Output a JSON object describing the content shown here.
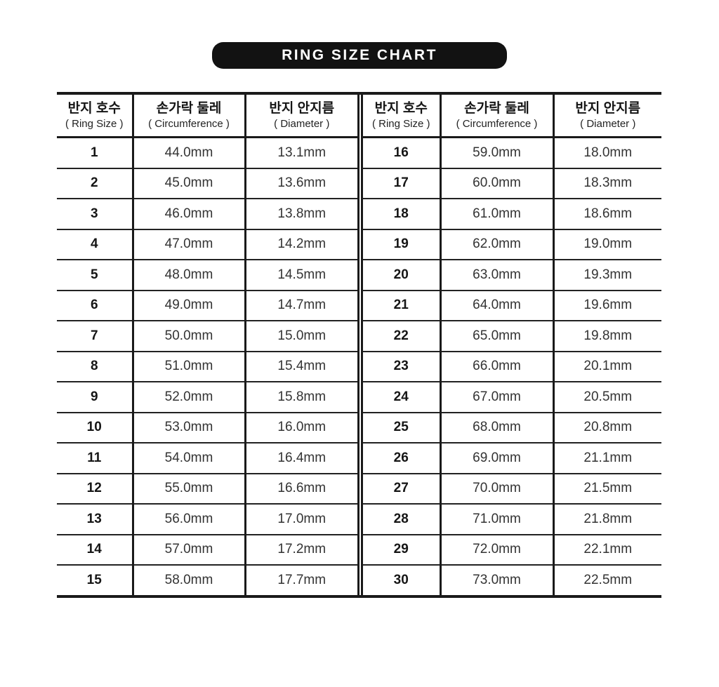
{
  "chart_data": {
    "type": "table",
    "title": "RING SIZE CHART",
    "column_headers": [
      {
        "ko": "반지 호수",
        "en": "( Ring Size )"
      },
      {
        "ko": "손가락 둘레",
        "en": "( Circumference )"
      },
      {
        "ko": "반지 안지름",
        "en": "( Diameter )"
      }
    ],
    "left_rows": [
      {
        "size": "1",
        "circumference": "44.0mm",
        "diameter": "13.1mm"
      },
      {
        "size": "2",
        "circumference": "45.0mm",
        "diameter": "13.6mm"
      },
      {
        "size": "3",
        "circumference": "46.0mm",
        "diameter": "13.8mm"
      },
      {
        "size": "4",
        "circumference": "47.0mm",
        "diameter": "14.2mm"
      },
      {
        "size": "5",
        "circumference": "48.0mm",
        "diameter": "14.5mm"
      },
      {
        "size": "6",
        "circumference": "49.0mm",
        "diameter": "14.7mm"
      },
      {
        "size": "7",
        "circumference": "50.0mm",
        "diameter": "15.0mm"
      },
      {
        "size": "8",
        "circumference": "51.0mm",
        "diameter": "15.4mm"
      },
      {
        "size": "9",
        "circumference": "52.0mm",
        "diameter": "15.8mm"
      },
      {
        "size": "10",
        "circumference": "53.0mm",
        "diameter": "16.0mm"
      },
      {
        "size": "11",
        "circumference": "54.0mm",
        "diameter": "16.4mm"
      },
      {
        "size": "12",
        "circumference": "55.0mm",
        "diameter": "16.6mm"
      },
      {
        "size": "13",
        "circumference": "56.0mm",
        "diameter": "17.0mm"
      },
      {
        "size": "14",
        "circumference": "57.0mm",
        "diameter": "17.2mm"
      },
      {
        "size": "15",
        "circumference": "58.0mm",
        "diameter": "17.7mm"
      }
    ],
    "right_rows": [
      {
        "size": "16",
        "circumference": "59.0mm",
        "diameter": "18.0mm"
      },
      {
        "size": "17",
        "circumference": "60.0mm",
        "diameter": "18.3mm"
      },
      {
        "size": "18",
        "circumference": "61.0mm",
        "diameter": "18.6mm"
      },
      {
        "size": "19",
        "circumference": "62.0mm",
        "diameter": "19.0mm"
      },
      {
        "size": "20",
        "circumference": "63.0mm",
        "diameter": "19.3mm"
      },
      {
        "size": "21",
        "circumference": "64.0mm",
        "diameter": "19.6mm"
      },
      {
        "size": "22",
        "circumference": "65.0mm",
        "diameter": "19.8mm"
      },
      {
        "size": "23",
        "circumference": "66.0mm",
        "diameter": "20.1mm"
      },
      {
        "size": "24",
        "circumference": "67.0mm",
        "diameter": "20.5mm"
      },
      {
        "size": "25",
        "circumference": "68.0mm",
        "diameter": "20.8mm"
      },
      {
        "size": "26",
        "circumference": "69.0mm",
        "diameter": "21.1mm"
      },
      {
        "size": "27",
        "circumference": "70.0mm",
        "diameter": "21.5mm"
      },
      {
        "size": "28",
        "circumference": "71.0mm",
        "diameter": "21.8mm"
      },
      {
        "size": "29",
        "circumference": "72.0mm",
        "diameter": "22.1mm"
      },
      {
        "size": "30",
        "circumference": "73.0mm",
        "diameter": "22.5mm"
      }
    ]
  },
  "colors": {
    "pill_background": "#121212",
    "pill_text": "#ffffff",
    "table_border": "#1a1a1a",
    "value_text": "#333333"
  }
}
